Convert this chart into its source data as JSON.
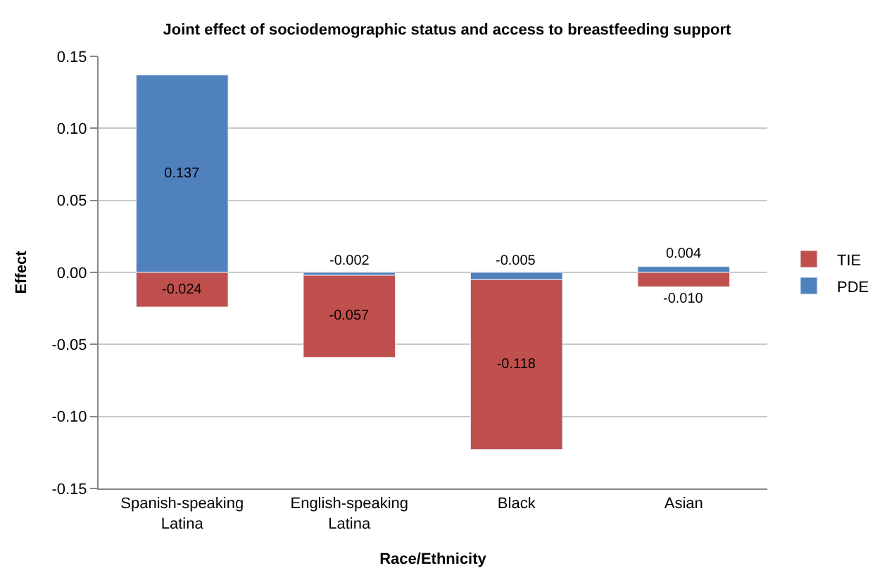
{
  "chart_data": {
    "type": "bar",
    "title": "Joint effect of sociodemographic status and access to breastfeeding support",
    "xlabel": "Race/Ethnicity",
    "ylabel": "Effect",
    "categories": [
      "Spanish-speaking Latina",
      "English-speaking Latina",
      "Black",
      "Asian"
    ],
    "stacked": true,
    "series": [
      {
        "name": "PDE",
        "color": "#4f81bd",
        "values": [
          0.137,
          -0.002,
          -0.005,
          0.004
        ],
        "value_labels": [
          "0.137",
          "-0.002",
          "-0.005",
          "0.004"
        ]
      },
      {
        "name": "TIE",
        "color": "#c0504d",
        "values": [
          -0.024,
          -0.057,
          -0.118,
          -0.01
        ],
        "value_labels": [
          "-0.024",
          "-0.057",
          "-0.118",
          "-0.010"
        ]
      }
    ],
    "ylim": [
      -0.15,
      0.15
    ],
    "yticks": [
      {
        "value": -0.15,
        "label": "-0.15"
      },
      {
        "value": -0.1,
        "label": "-0.10"
      },
      {
        "value": -0.05,
        "label": "-0.05"
      },
      {
        "value": 0,
        "label": "0.00"
      },
      {
        "value": 0.05,
        "label": "0.05"
      },
      {
        "value": 0.1,
        "label": "0.10"
      },
      {
        "value": 0.15,
        "label": "0.15"
      }
    ],
    "grid": "y",
    "legend": "right"
  }
}
